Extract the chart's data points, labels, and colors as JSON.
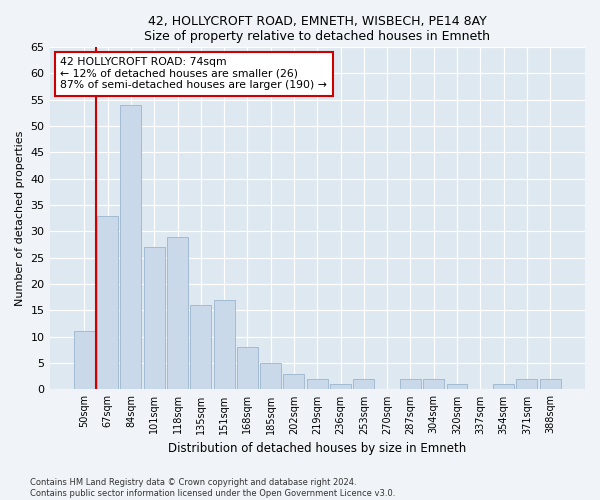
{
  "title1": "42, HOLLYCROFT ROAD, EMNETH, WISBECH, PE14 8AY",
  "title2": "Size of property relative to detached houses in Emneth",
  "xlabel": "Distribution of detached houses by size in Emneth",
  "ylabel": "Number of detached properties",
  "categories": [
    "50sqm",
    "67sqm",
    "84sqm",
    "101sqm",
    "118sqm",
    "135sqm",
    "151sqm",
    "168sqm",
    "185sqm",
    "202sqm",
    "219sqm",
    "236sqm",
    "253sqm",
    "270sqm",
    "287sqm",
    "304sqm",
    "320sqm",
    "337sqm",
    "354sqm",
    "371sqm",
    "388sqm"
  ],
  "values": [
    11,
    33,
    54,
    27,
    29,
    16,
    17,
    8,
    5,
    3,
    2,
    1,
    2,
    0,
    2,
    2,
    1,
    0,
    1,
    2,
    2
  ],
  "bar_color": "#c9d9ea",
  "bar_edge_color": "#9ab5cd",
  "vline_x": 0.5,
  "vline_color": "#cc0000",
  "annotation_text": "42 HOLLYCROFT ROAD: 74sqm\n← 12% of detached houses are smaller (26)\n87% of semi-detached houses are larger (190) →",
  "annotation_box_color": "#ffffff",
  "annotation_box_edge": "#cc0000",
  "ylim": [
    0,
    65
  ],
  "yticks": [
    0,
    5,
    10,
    15,
    20,
    25,
    30,
    35,
    40,
    45,
    50,
    55,
    60,
    65
  ],
  "footer1": "Contains HM Land Registry data © Crown copyright and database right 2024.",
  "footer2": "Contains public sector information licensed under the Open Government Licence v3.0.",
  "fig_bg_color": "#f0f4f8",
  "plot_bg_color": "#dde8f0"
}
